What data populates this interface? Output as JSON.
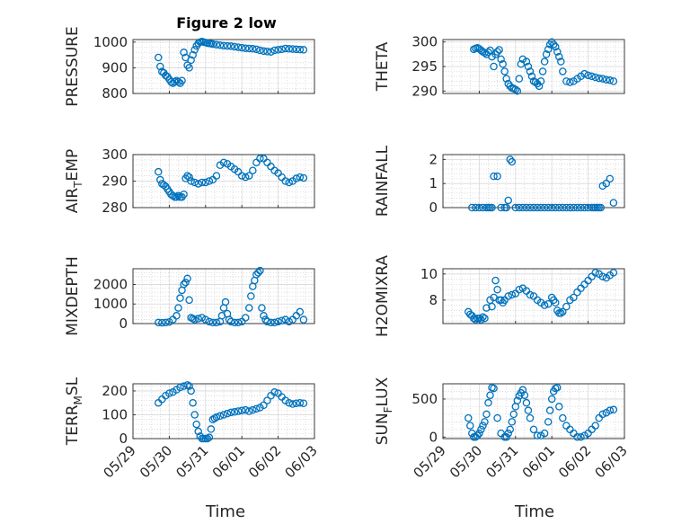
{
  "chart_data": {
    "type": "scatter",
    "title": "Figure 2 low",
    "xlabel": "Time",
    "x_tick_labels": [
      "05/29",
      "05/30",
      "05/31",
      "06/01",
      "06/02",
      "06/03"
    ],
    "grid": true,
    "marker_color": "#0072BD",
    "panels": [
      {
        "id": "pressure",
        "ylabel": "PRESSURE",
        "ylim": [
          800,
          1010
        ],
        "yticks": [
          800,
          900,
          1000
        ],
        "x": [
          0.7,
          0.75,
          0.8,
          0.85,
          0.9,
          0.95,
          1.0,
          1.05,
          1.1,
          1.15,
          1.2,
          1.25,
          1.3,
          1.35,
          1.4,
          1.45,
          1.5,
          1.55,
          1.6,
          1.65,
          1.7,
          1.75,
          1.8,
          1.85,
          1.9,
          1.95,
          2.0,
          2.05,
          2.1,
          2.15,
          2.2,
          2.3,
          2.4,
          2.5,
          2.6,
          2.7,
          2.8,
          2.9,
          3.0,
          3.1,
          3.2,
          3.3,
          3.4,
          3.5,
          3.6,
          3.7,
          3.8,
          3.9,
          4.0,
          4.1,
          4.2,
          4.3,
          4.4,
          4.5,
          4.6,
          4.7
        ],
        "y": [
          940,
          905,
          885,
          880,
          870,
          865,
          855,
          845,
          840,
          845,
          850,
          845,
          840,
          850,
          960,
          940,
          910,
          900,
          930,
          950,
          970,
          985,
          995,
          1000,
          1002,
          1000,
          998,
          996,
          995,
          994,
          992,
          990,
          988,
          986,
          985,
          984,
          982,
          980,
          978,
          976,
          975,
          974,
          972,
          968,
          965,
          963,
          962,
          968,
          970,
          972,
          975,
          974,
          973,
          972,
          971,
          970
        ]
      },
      {
        "id": "theta",
        "ylabel": "THETA",
        "ylim": [
          289.5,
          300.5
        ],
        "yticks": [
          290,
          295,
          300
        ],
        "x": [
          0.85,
          0.9,
          0.95,
          1.0,
          1.05,
          1.1,
          1.15,
          1.2,
          1.25,
          1.3,
          1.35,
          1.4,
          1.45,
          1.5,
          1.55,
          1.6,
          1.65,
          1.7,
          1.75,
          1.8,
          1.85,
          1.9,
          1.95,
          2.0,
          2.05,
          2.1,
          2.15,
          2.2,
          2.3,
          2.35,
          2.4,
          2.45,
          2.5,
          2.55,
          2.6,
          2.65,
          2.7,
          2.75,
          2.8,
          2.85,
          2.9,
          2.95,
          3.0,
          3.05,
          3.1,
          3.15,
          3.2,
          3.25,
          3.3,
          3.4,
          3.5,
          3.6,
          3.7,
          3.8,
          3.9,
          4.0,
          4.1,
          4.2,
          4.3,
          4.4,
          4.5,
          4.6,
          4.7
        ],
        "y": [
          298.5,
          298.7,
          298.8,
          298.6,
          298.3,
          298.0,
          297.8,
          297.5,
          297.9,
          298.3,
          297.0,
          295.0,
          297.5,
          298.0,
          298.4,
          296.5,
          295.5,
          294.0,
          292.5,
          291.5,
          291.0,
          290.6,
          290.5,
          290.3,
          290.0,
          292.5,
          295.5,
          296.5,
          296.0,
          295.0,
          294.0,
          293.0,
          292.0,
          291.8,
          291.5,
          291.0,
          292.0,
          294.0,
          296.0,
          297.5,
          298.5,
          299.5,
          300.0,
          299.5,
          299.0,
          298.0,
          297.0,
          296.0,
          294.0,
          292.0,
          291.8,
          292.0,
          292.5,
          293.0,
          293.5,
          293.2,
          293.0,
          292.8,
          292.6,
          292.5,
          292.3,
          292.2,
          292.0
        ]
      },
      {
        "id": "air_temp",
        "ylabel": "AIR",
        "ylabel_sub": "T",
        "ylabel_tail": "EMP",
        "ylim": [
          280,
          300
        ],
        "yticks": [
          280,
          290,
          300
        ],
        "x": [
          0.7,
          0.75,
          0.8,
          0.85,
          0.9,
          0.95,
          1.0,
          1.05,
          1.1,
          1.15,
          1.2,
          1.25,
          1.3,
          1.35,
          1.4,
          1.45,
          1.5,
          1.55,
          1.6,
          1.7,
          1.8,
          1.9,
          2.0,
          2.1,
          2.2,
          2.3,
          2.4,
          2.5,
          2.6,
          2.7,
          2.8,
          2.9,
          3.0,
          3.1,
          3.2,
          3.3,
          3.4,
          3.5,
          3.6,
          3.7,
          3.8,
          3.9,
          4.0,
          4.1,
          4.2,
          4.3,
          4.4,
          4.5,
          4.6,
          4.7
        ],
        "y": [
          293.5,
          290.5,
          289,
          288.5,
          288,
          287,
          286,
          285,
          284.5,
          284,
          284,
          284.5,
          284,
          284,
          285,
          291,
          292,
          291.5,
          290,
          289.5,
          289,
          289.5,
          289.5,
          290,
          290.5,
          292,
          296,
          297,
          296.5,
          295.5,
          294.5,
          293.5,
          292,
          291.5,
          292,
          294,
          297,
          298.5,
          298.5,
          297,
          295.5,
          294,
          293,
          291.5,
          290,
          289.5,
          290,
          291,
          291.5,
          291.2
        ]
      },
      {
        "id": "rainfall",
        "ylabel": "RAINFALL",
        "ylim": [
          0,
          2.2
        ],
        "yticks": [
          0,
          1,
          2
        ],
        "x": [
          0.8,
          0.9,
          1.0,
          1.1,
          1.2,
          1.25,
          1.3,
          1.35,
          1.4,
          1.5,
          1.6,
          1.7,
          1.75,
          1.8,
          1.85,
          1.9,
          2.0,
          2.1,
          2.2,
          2.3,
          2.4,
          2.5,
          2.6,
          2.7,
          2.8,
          2.9,
          3.0,
          3.1,
          3.2,
          3.3,
          3.4,
          3.5,
          3.6,
          3.7,
          3.8,
          3.9,
          4.0,
          4.1,
          4.15,
          4.2,
          4.25,
          4.3,
          4.35,
          4.4,
          4.5,
          4.6,
          4.7
        ],
        "y": [
          0,
          0,
          0,
          0,
          0,
          0,
          0,
          0,
          1.3,
          1.3,
          0,
          0,
          0,
          0.3,
          2.0,
          1.9,
          0,
          0,
          0,
          0,
          0,
          0,
          0,
          0,
          0,
          0,
          0,
          0,
          0,
          0,
          0,
          0,
          0,
          0,
          0,
          0,
          0,
          0,
          0,
          0,
          0,
          0,
          0,
          0.9,
          1.0,
          1.2,
          0.2
        ]
      },
      {
        "id": "mixdepth",
        "ylabel": "MIXDEPTH",
        "ylim": [
          0,
          2800
        ],
        "yticks": [
          0,
          1000,
          2000
        ],
        "x": [
          0.7,
          0.8,
          0.9,
          1.0,
          1.1,
          1.2,
          1.25,
          1.3,
          1.35,
          1.4,
          1.45,
          1.5,
          1.55,
          1.6,
          1.65,
          1.7,
          1.8,
          1.9,
          2.0,
          2.1,
          2.2,
          2.3,
          2.4,
          2.45,
          2.5,
          2.55,
          2.6,
          2.65,
          2.7,
          2.8,
          2.9,
          3.0,
          3.1,
          3.2,
          3.25,
          3.3,
          3.35,
          3.4,
          3.45,
          3.5,
          3.55,
          3.6,
          3.65,
          3.7,
          3.8,
          3.9,
          4.0,
          4.1,
          4.2,
          4.3,
          4.4,
          4.5,
          4.6,
          4.7
        ],
        "y": [
          50,
          40,
          50,
          80,
          200,
          400,
          800,
          1300,
          1700,
          2000,
          2100,
          2300,
          1200,
          300,
          250,
          200,
          250,
          300,
          200,
          100,
          50,
          50,
          100,
          400,
          800,
          1100,
          500,
          200,
          100,
          50,
          50,
          100,
          300,
          800,
          1400,
          1900,
          2200,
          2500,
          2600,
          2700,
          800,
          400,
          200,
          100,
          50,
          50,
          100,
          150,
          200,
          100,
          200,
          400,
          600,
          200
        ]
      },
      {
        "id": "h2omixra",
        "ylabel": "H2OMIXRA",
        "ylim": [
          6.2,
          10.4
        ],
        "yticks": [
          8,
          10
        ],
        "x": [
          0.7,
          0.75,
          0.8,
          0.85,
          0.9,
          0.95,
          1.0,
          1.05,
          1.1,
          1.15,
          1.2,
          1.3,
          1.35,
          1.4,
          1.45,
          1.5,
          1.55,
          1.6,
          1.65,
          1.7,
          1.8,
          1.9,
          2.0,
          2.1,
          2.2,
          2.3,
          2.4,
          2.5,
          2.6,
          2.7,
          2.8,
          2.9,
          3.0,
          3.05,
          3.1,
          3.15,
          3.2,
          3.25,
          3.3,
          3.4,
          3.5,
          3.6,
          3.7,
          3.8,
          3.9,
          4.0,
          4.1,
          4.2,
          4.3,
          4.4,
          4.5,
          4.6,
          4.7
        ],
        "y": [
          7.1,
          6.9,
          6.8,
          6.6,
          6.5,
          6.6,
          6.6,
          6.5,
          6.7,
          6.6,
          7.4,
          8.0,
          7.5,
          8.2,
          9.5,
          8.8,
          8.0,
          8.0,
          7.8,
          8.0,
          8.3,
          8.4,
          8.5,
          8.8,
          8.9,
          8.7,
          8.4,
          8.3,
          8.0,
          7.8,
          7.6,
          7.7,
          8.2,
          8.0,
          7.8,
          7.2,
          7.0,
          7.0,
          7.1,
          7.5,
          8.0,
          8.2,
          8.6,
          8.9,
          9.2,
          9.5,
          9.8,
          10.1,
          10.0,
          9.8,
          9.7,
          9.9,
          10.1
        ]
      },
      {
        "id": "terr_msl",
        "ylabel": "TERR",
        "ylabel_sub": "M",
        "ylabel_tail": "SL",
        "ylim": [
          0,
          230
        ],
        "yticks": [
          0,
          100,
          200
        ],
        "x": [
          0.7,
          0.8,
          0.9,
          1.0,
          1.1,
          1.2,
          1.3,
          1.4,
          1.5,
          1.55,
          1.6,
          1.65,
          1.7,
          1.75,
          1.8,
          1.85,
          1.9,
          1.95,
          2.0,
          2.05,
          2.1,
          2.15,
          2.2,
          2.25,
          2.3,
          2.4,
          2.5,
          2.6,
          2.7,
          2.8,
          2.9,
          3.0,
          3.1,
          3.2,
          3.3,
          3.4,
          3.5,
          3.6,
          3.7,
          3.8,
          3.9,
          4.0,
          4.1,
          4.2,
          4.3,
          4.4,
          4.5,
          4.6,
          4.7
        ],
        "y": [
          150,
          165,
          180,
          190,
          195,
          205,
          215,
          220,
          225,
          220,
          200,
          150,
          100,
          60,
          30,
          10,
          0,
          0,
          0,
          0,
          5,
          40,
          80,
          85,
          90,
          95,
          100,
          105,
          110,
          112,
          115,
          118,
          120,
          115,
          120,
          125,
          130,
          140,
          160,
          180,
          195,
          190,
          175,
          160,
          150,
          145,
          148,
          150,
          148
        ]
      },
      {
        "id": "sun_flux",
        "ylabel": "SUN",
        "ylabel_sub": "F",
        "ylabel_tail": "LUX",
        "ylim": [
          -20,
          700
        ],
        "yticks": [
          0,
          500
        ],
        "x": [
          0.7,
          0.75,
          0.8,
          0.85,
          0.9,
          0.95,
          1.0,
          1.05,
          1.1,
          1.15,
          1.2,
          1.25,
          1.3,
          1.35,
          1.4,
          1.5,
          1.6,
          1.7,
          1.75,
          1.8,
          1.85,
          1.9,
          1.95,
          2.0,
          2.05,
          2.1,
          2.15,
          2.2,
          2.25,
          2.3,
          2.35,
          2.4,
          2.5,
          2.6,
          2.7,
          2.8,
          2.9,
          2.95,
          3.0,
          3.05,
          3.1,
          3.15,
          3.2,
          3.3,
          3.4,
          3.5,
          3.6,
          3.7,
          3.8,
          3.9,
          4.0,
          4.1,
          4.2,
          4.3,
          4.4,
          4.5,
          4.6,
          4.7
        ],
        "y": [
          250,
          150,
          50,
          0,
          0,
          20,
          50,
          100,
          150,
          200,
          300,
          450,
          550,
          650,
          640,
          250,
          50,
          0,
          0,
          50,
          100,
          200,
          300,
          400,
          480,
          540,
          580,
          620,
          550,
          450,
          350,
          250,
          100,
          20,
          20,
          50,
          200,
          350,
          500,
          600,
          640,
          650,
          400,
          250,
          150,
          100,
          50,
          0,
          0,
          20,
          50,
          100,
          150,
          250,
          300,
          320,
          350,
          360
        ]
      }
    ]
  }
}
